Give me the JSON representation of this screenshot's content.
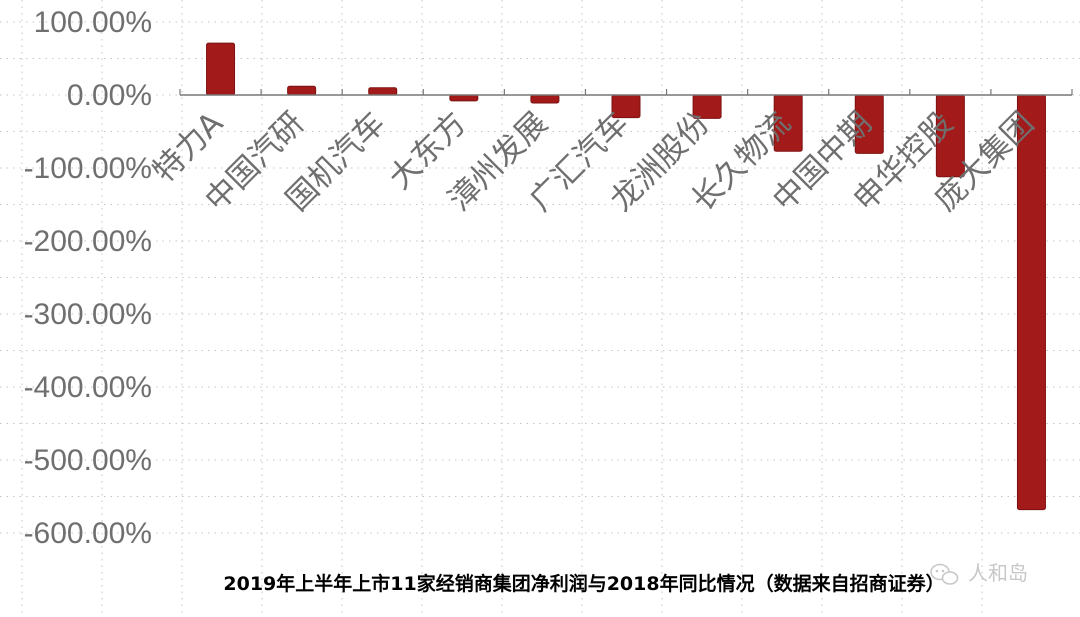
{
  "chart_data": {
    "type": "bar",
    "title": "2019年上半年上市11家经销商集团净利润与2018年同比情况（数据来自招商证券）",
    "categories": [
      "特力A",
      "中国汽研",
      "国机汽车",
      "大东方",
      "漳州发展",
      "广汇汽车",
      "龙洲股份",
      "长久物流",
      "中国中期",
      "申华控股",
      "庞大集团"
    ],
    "values": [
      71,
      12,
      10,
      -8,
      -11,
      -31,
      -32,
      -77,
      -80,
      -112,
      -568
    ],
    "unit": "%",
    "yticks": [
      "100.00%",
      "0.00%",
      "-100.00%",
      "-200.00%",
      "-300.00%",
      "-400.00%",
      "-500.00%",
      "-600.00%"
    ],
    "ylim": [
      -600,
      100
    ],
    "grid": true,
    "colors": {
      "bar": "#a31a1a",
      "bar_edge": "#7d1212",
      "axis": "#777777",
      "grid": "#c4c4c4"
    }
  },
  "watermark": {
    "icon": "wechat-icon",
    "text": "人和岛"
  }
}
